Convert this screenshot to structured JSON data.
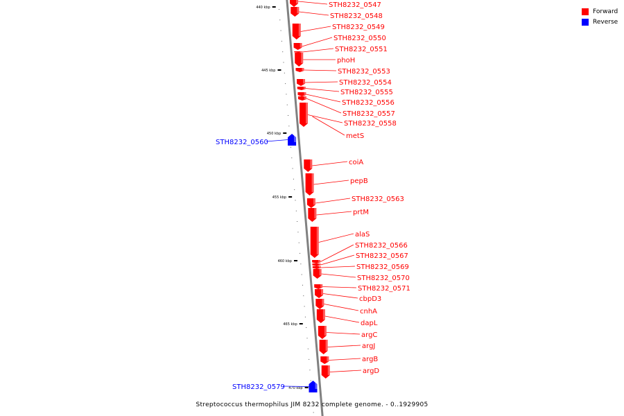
{
  "legend": {
    "forward_label": "Forward",
    "reverse_label": "Reverse",
    "forward_color": "#ff0000",
    "reverse_color": "#0000ff"
  },
  "caption": "Streptococcus thermophilus JIM 8232 complete genome. - 0..1929905",
  "ticks": [
    "440 kbp",
    "445 kbp",
    "450 kbp",
    "455 kbp",
    "460 kbp",
    "465 kbp",
    "470 kbp"
  ],
  "genes": [
    {
      "label": "STH8232_0547",
      "strand": "forward"
    },
    {
      "label": "STH8232_0548",
      "strand": "forward"
    },
    {
      "label": "STH8232_0549",
      "strand": "forward"
    },
    {
      "label": "STH8232_0550",
      "strand": "forward"
    },
    {
      "label": "STH8232_0551",
      "strand": "forward"
    },
    {
      "label": "phoH",
      "strand": "forward"
    },
    {
      "label": "STH8232_0553",
      "strand": "forward"
    },
    {
      "label": "STH8232_0554",
      "strand": "forward"
    },
    {
      "label": "STH8232_0555",
      "strand": "forward"
    },
    {
      "label": "STH8232_0556",
      "strand": "forward"
    },
    {
      "label": "STH8232_0557",
      "strand": "forward"
    },
    {
      "label": "STH8232_0558",
      "strand": "forward"
    },
    {
      "label": "metS",
      "strand": "forward"
    },
    {
      "label": "STH8232_0560",
      "strand": "reverse"
    },
    {
      "label": "coiA",
      "strand": "forward"
    },
    {
      "label": "pepB",
      "strand": "forward"
    },
    {
      "label": "STH8232_0563",
      "strand": "forward"
    },
    {
      "label": "prtM",
      "strand": "forward"
    },
    {
      "label": "alaS",
      "strand": "forward"
    },
    {
      "label": "STH8232_0566",
      "strand": "forward"
    },
    {
      "label": "STH8232_0567",
      "strand": "forward"
    },
    {
      "label": "STH8232_0569",
      "strand": "forward"
    },
    {
      "label": "STH8232_0570",
      "strand": "forward"
    },
    {
      "label": "STH8232_0571",
      "strand": "forward"
    },
    {
      "label": "cbpD3",
      "strand": "forward"
    },
    {
      "label": "cnhA",
      "strand": "forward"
    },
    {
      "label": "dapL",
      "strand": "forward"
    },
    {
      "label": "argC",
      "strand": "forward"
    },
    {
      "label": "argJ",
      "strand": "forward"
    },
    {
      "label": "argB",
      "strand": "forward"
    },
    {
      "label": "argD",
      "strand": "forward"
    },
    {
      "label": "STH8232_0579",
      "strand": "reverse"
    }
  ]
}
